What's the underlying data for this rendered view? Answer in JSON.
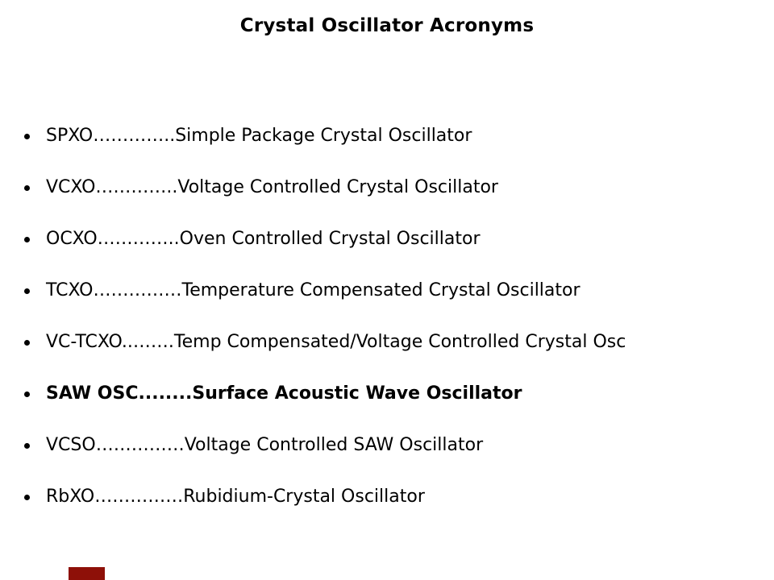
{
  "slide": {
    "title": "Crystal Oscillator Acronyms",
    "background_color": "#ffffff",
    "text_color": "#000000",
    "logo_color": "#8e1008"
  },
  "list": {
    "items": [
      {
        "text": "SPXO…………..Simple Package Crystal Oscillator",
        "bold": false
      },
      {
        "text": "VCXO…………..Voltage Controlled Crystal Oscillator",
        "bold": false
      },
      {
        "text": "OCXO…………..Oven Controlled Crystal Oscillator",
        "bold": false
      },
      {
        "text": "TCXO……………Temperature Compensated Crystal Oscillator",
        "bold": false
      },
      {
        "text": "VC-TCXO..…….Temp Compensated/Voltage Controlled Crystal Osc",
        "bold": false
      },
      {
        "text": "SAW OSC........Surface Acoustic Wave Oscillator",
        "bold": true
      },
      {
        "text": "VCSO……………Voltage Controlled SAW Oscillator",
        "bold": false
      },
      {
        "text": "RbXO……………Rubidium-Crystal Oscillator",
        "bold": false
      }
    ]
  }
}
